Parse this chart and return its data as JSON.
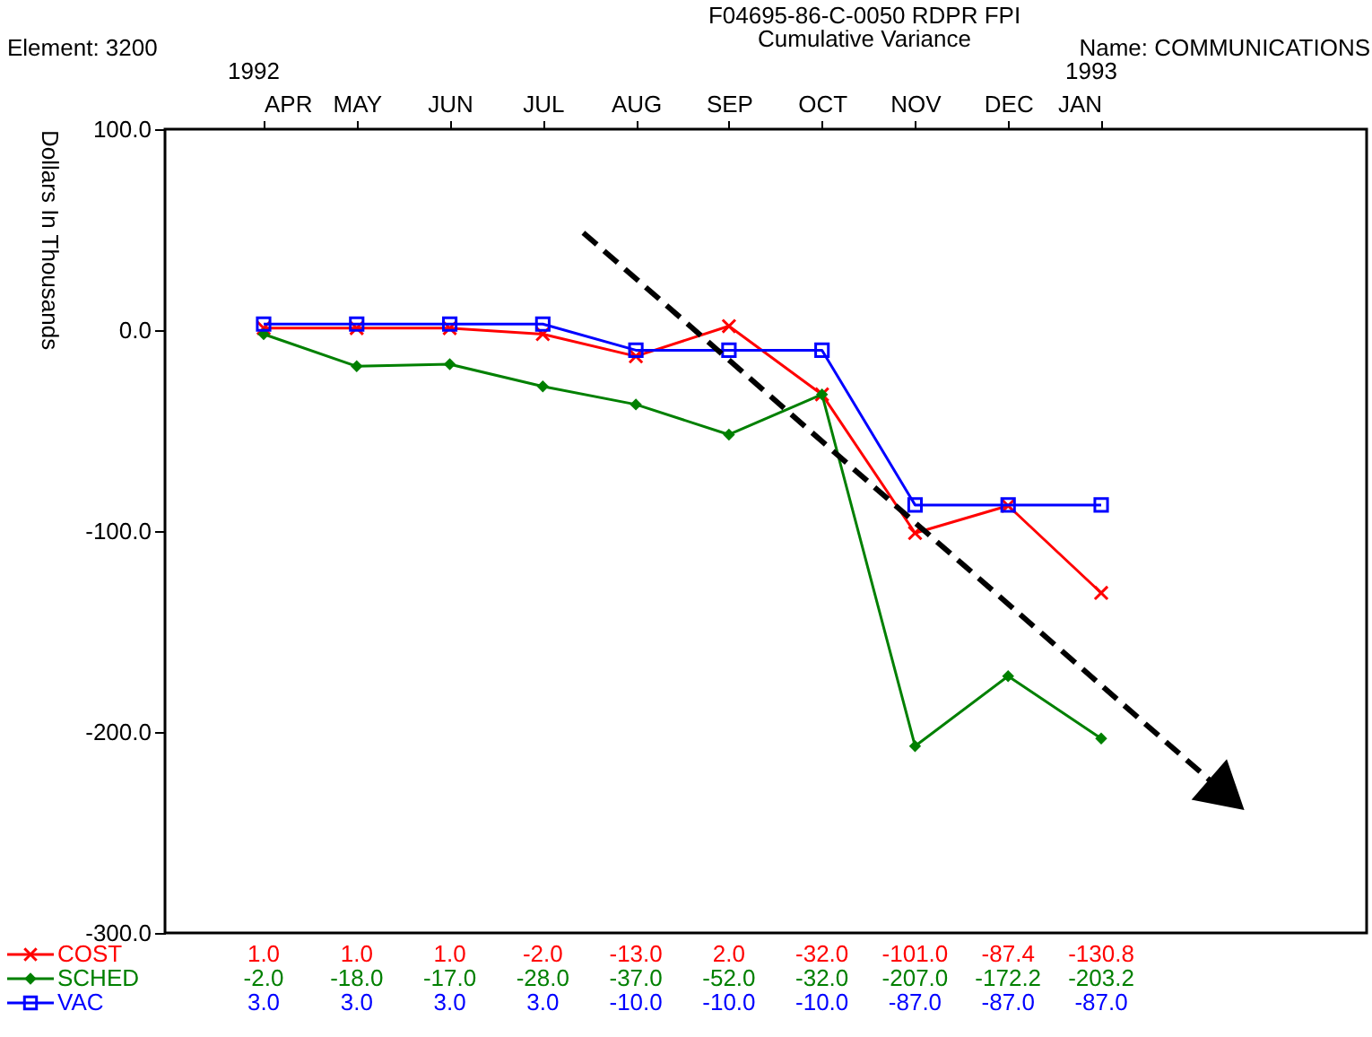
{
  "chart_data": {
    "type": "line",
    "title": "F04695-86-C-0050 RDPR FPI",
    "subtitle": "Cumulative Variance",
    "ylabel": "Dollars In Thousands",
    "annotations": [
      "Element: 3200",
      "Name: COMMUNICATIONS",
      "1992",
      "1993"
    ],
    "categories": [
      "APR",
      "MAY",
      "JUN",
      "JUL",
      "AUG",
      "SEP",
      "OCT",
      "NOV",
      "DEC",
      "JAN"
    ],
    "series": [
      {
        "name": "COST",
        "color": "#ff0000",
        "marker": "cross",
        "values": [
          1.0,
          1.0,
          1.0,
          -2.0,
          -13.0,
          2.0,
          -32.0,
          -101.0,
          -87.4,
          -130.8
        ],
        "value_labels": [
          "1.0",
          "1.0",
          "1.0",
          "-2.0",
          "-13.0",
          "2.0",
          "-32.0",
          "-101.0",
          "-87.4",
          "-130.8"
        ]
      },
      {
        "name": "SCHED",
        "color": "#008000",
        "marker": "diamond",
        "values": [
          -2.0,
          -18.0,
          -17.0,
          -28.0,
          -37.0,
          -52.0,
          -32.0,
          -207.0,
          -172.2,
          -203.2
        ],
        "value_labels": [
          "-2.0",
          "-18.0",
          "-17.0",
          "-28.0",
          "-37.0",
          "-52.0",
          "-32.0",
          "-207.0",
          "-172.2",
          "-203.2"
        ]
      },
      {
        "name": "VAC",
        "color": "#0000ff",
        "marker": "square",
        "values": [
          3.0,
          3.0,
          3.0,
          3.0,
          -10.0,
          -10.0,
          -10.0,
          -87.0,
          -87.0,
          -87.0
        ],
        "value_labels": [
          "3.0",
          "3.0",
          "3.0",
          "3.0",
          "-10.0",
          "-10.0",
          "-10.0",
          "-87.0",
          "-87.0",
          "-87.0"
        ]
      }
    ],
    "ylim": [
      -300,
      100
    ],
    "yticks": [
      {
        "value": -300,
        "label": "-300.0"
      },
      {
        "value": -200,
        "label": "-200.0"
      },
      {
        "value": -100,
        "label": "-100.0"
      },
      {
        "value": 0,
        "label": "0.0"
      },
      {
        "value": 100,
        "label": "100.0"
      }
    ],
    "grid": false,
    "legend": "bottom left",
    "line_style": "solid"
  }
}
